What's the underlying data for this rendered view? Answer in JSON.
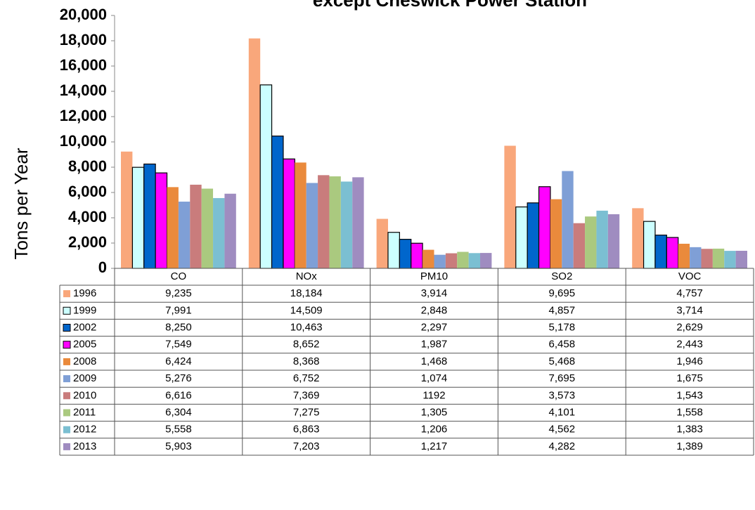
{
  "chart_data": {
    "type": "bar",
    "title": "except Cheswick Power Station",
    "y_label": "Tons per Year",
    "categories": [
      "CO",
      "NOx",
      "PM10",
      "SO2",
      "VOC"
    ],
    "ylim": [
      0,
      20000
    ],
    "yticks": [
      0,
      {
        "value": 2000,
        "label": "2,000"
      },
      {
        "value": 4000,
        "label": "4,000"
      },
      {
        "value": 6000,
        "label": "6,000"
      },
      {
        "value": 8000,
        "label": "8,000"
      },
      {
        "value": 10000,
        "label": "10,000"
      },
      {
        "value": 12000,
        "label": "12,000"
      },
      {
        "value": 14000,
        "label": "14,000"
      },
      {
        "value": 16000,
        "label": "16,000"
      },
      {
        "value": 18000,
        "label": "18,000"
      },
      {
        "value": 20000,
        "label": "20,000"
      }
    ],
    "series": [
      {
        "name": "1996",
        "color": "#f9a77b",
        "values": [
          9235,
          18184,
          3914,
          9695,
          4757
        ],
        "value_labels": [
          "9,235",
          "18,184",
          "3,914",
          "9,695",
          "4,757"
        ]
      },
      {
        "name": "1999",
        "color": "#ccffff",
        "edgecolor": "#000000",
        "values": [
          7991,
          14509,
          2848,
          4857,
          3714
        ],
        "value_labels": [
          "7,991",
          "14,509",
          "2,848",
          "4,857",
          "3,714"
        ]
      },
      {
        "name": "2002",
        "color": "#0066cc",
        "edgecolor": "#000000",
        "values": [
          8250,
          10463,
          2297,
          5178,
          2629
        ],
        "value_labels": [
          "8,250",
          "10,463",
          "2,297",
          "5,178",
          "2,629"
        ]
      },
      {
        "name": "2005",
        "color": "#ff00ff",
        "edgecolor": "#000000",
        "values": [
          7549,
          8652,
          1987,
          6458,
          2443
        ],
        "value_labels": [
          "7,549",
          "8,652",
          "1,987",
          "6,458",
          "2,443"
        ]
      },
      {
        "name": "2008",
        "color": "#ea8a3c",
        "values": [
          6424,
          8368,
          1468,
          5468,
          1946
        ],
        "value_labels": [
          "6,424",
          "8,368",
          "1,468",
          "5,468",
          "1,946"
        ]
      },
      {
        "name": "2009",
        "color": "#7f9fd6",
        "values": [
          5276,
          6752,
          1074,
          7695,
          1675
        ],
        "value_labels": [
          "5,276",
          "6,752",
          "1,074",
          "7,695",
          "1,675"
        ]
      },
      {
        "name": "2010",
        "color": "#c97c7c",
        "values": [
          6616,
          7369,
          1192,
          3573,
          1543
        ],
        "value_labels": [
          "6,616",
          "7,369",
          "1192",
          "3,573",
          "1,543"
        ]
      },
      {
        "name": "2011",
        "color": "#aac97f",
        "values": [
          6304,
          7275,
          1305,
          4101,
          1558
        ],
        "value_labels": [
          "6,304",
          "7,275",
          "1,305",
          "4,101",
          "1,558"
        ]
      },
      {
        "name": "2012",
        "color": "#7bbfd2",
        "values": [
          5558,
          6863,
          1206,
          4562,
          1383
        ],
        "value_labels": [
          "5,558",
          "6,863",
          "1,206",
          "4,562",
          "1,383"
        ]
      },
      {
        "name": "2013",
        "color": "#9f8cc0",
        "values": [
          5903,
          7203,
          1217,
          4282,
          1389
        ],
        "value_labels": [
          "5,903",
          "7,203",
          "1,217",
          "4,282",
          "1,389"
        ]
      }
    ]
  }
}
